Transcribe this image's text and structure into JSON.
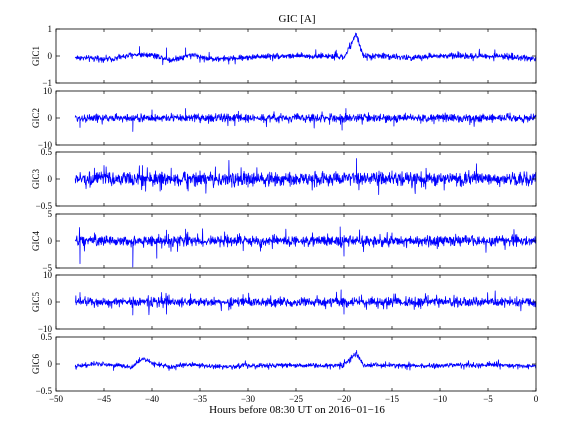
{
  "chart_data": {
    "type": "line",
    "title": "GIC [A]",
    "xlabel": "Hours before  08:30 UT on 2016−01−16",
    "xlim": [
      -50,
      0
    ],
    "x_ticks": [
      "−50",
      "−45",
      "−40",
      "−35",
      "−30",
      "−25",
      "−20",
      "−15",
      "−10",
      "−5",
      "0"
    ],
    "x_tick_values": [
      -50,
      -45,
      -40,
      -35,
      -30,
      -25,
      -20,
      -15,
      -10,
      -5,
      0
    ],
    "grid": false,
    "line_color": "#0000ff",
    "data_start_hours": -48,
    "panels": [
      {
        "ylabel": "GIC1",
        "ylim": [
          -1,
          1
        ],
        "y_ticks": [
          "1",
          "0",
          "−1"
        ],
        "y_tick_values": [
          1,
          0,
          -1
        ],
        "series": [
          {
            "x": [
              -48,
              -46,
              -44,
              -42,
              -40,
              -38,
              -36,
              -34,
              -32,
              -30,
              -28,
              -26,
              -24,
              -22,
              -20,
              -18.7,
              -18,
              -16,
              -14,
              -12,
              -10,
              -8,
              -6,
              -4,
              -2,
              0
            ],
            "y": [
              -0.05,
              -0.1,
              -0.1,
              0.05,
              0.05,
              -0.15,
              0.05,
              -0.1,
              -0.1,
              -0.05,
              0.0,
              0.0,
              0.0,
              0.0,
              -0.05,
              0.8,
              0.0,
              0.0,
              -0.05,
              -0.05,
              0.0,
              0.0,
              0.0,
              0.0,
              -0.05,
              -0.1
            ]
          }
        ],
        "noise": 0.05,
        "spikes": [
          {
            "x": -18.7,
            "y": 0.8
          },
          {
            "x": -41.3,
            "y": 0.35
          },
          {
            "x": -38.5,
            "y": 0.3
          },
          {
            "x": -36.5,
            "y": 0.3
          },
          {
            "x": -32.0,
            "y": -0.3
          }
        ]
      },
      {
        "ylabel": "GIC2",
        "ylim": [
          -10,
          10
        ],
        "y_ticks": [
          "10",
          "0",
          "−10"
        ],
        "y_tick_values": [
          10,
          0,
          -10
        ],
        "series": [
          {
            "x": [
              -48,
              0
            ],
            "y": [
              0,
              0
            ]
          }
        ],
        "noise": 0.7,
        "spikes": [
          {
            "x": -47.5,
            "y": -3.5
          },
          {
            "x": -42,
            "y": -5
          },
          {
            "x": -40,
            "y": 3
          },
          {
            "x": -36.5,
            "y": 3.5
          },
          {
            "x": -31,
            "y": 2.5
          },
          {
            "x": -20.2,
            "y": -4.5
          },
          {
            "x": -19.8,
            "y": 3.5
          },
          {
            "x": -14.8,
            "y": -3
          },
          {
            "x": -12,
            "y": -2
          },
          {
            "x": -8,
            "y": -1.5
          }
        ]
      },
      {
        "ylabel": "GIC3",
        "ylim": [
          -0.5,
          0.5
        ],
        "y_ticks": [
          "0.5",
          "0",
          "−0.5"
        ],
        "y_tick_values": [
          0.5,
          0,
          -0.5
        ],
        "series": [
          {
            "x": [
              -48,
              0
            ],
            "y": [
              0,
              0
            ]
          }
        ],
        "noise": 0.06,
        "spikes": [
          {
            "x": -46,
            "y": 0.2
          },
          {
            "x": -45,
            "y": 0.25
          },
          {
            "x": -41,
            "y": 0.25
          },
          {
            "x": -39,
            "y": -0.2
          },
          {
            "x": -38,
            "y": 0.2
          },
          {
            "x": -35,
            "y": 0.15
          },
          {
            "x": -30,
            "y": -0.15
          },
          {
            "x": -18.7,
            "y": 0.38
          },
          {
            "x": -15,
            "y": 0.15
          },
          {
            "x": -1,
            "y": -0.12
          }
        ]
      },
      {
        "ylabel": "GIC4",
        "ylim": [
          -5,
          5
        ],
        "y_ticks": [
          "5",
          "0",
          "−5"
        ],
        "y_tick_values": [
          5,
          0,
          -5
        ],
        "series": [
          {
            "x": [
              -48,
              0
            ],
            "y": [
              0,
              0
            ]
          }
        ],
        "noise": 0.45,
        "spikes": [
          {
            "x": -47.5,
            "y": -4.2
          },
          {
            "x": -46,
            "y": 1.5
          },
          {
            "x": -42,
            "y": -4.8
          },
          {
            "x": -39.5,
            "y": -3.2
          },
          {
            "x": -38.5,
            "y": 2.0
          },
          {
            "x": -36.5,
            "y": 2.2
          },
          {
            "x": -30.5,
            "y": -1.8
          },
          {
            "x": -20.4,
            "y": 2.6
          },
          {
            "x": -20.0,
            "y": -2.8
          },
          {
            "x": -15,
            "y": 1.5
          },
          {
            "x": -2,
            "y": 1.2
          }
        ]
      },
      {
        "ylabel": "GIC5",
        "ylim": [
          -10,
          10
        ],
        "y_ticks": [
          "10",
          "0",
          "−10"
        ],
        "y_tick_values": [
          10,
          0,
          -10
        ],
        "series": [
          {
            "x": [
              -48,
              0
            ],
            "y": [
              0,
              0
            ]
          }
        ],
        "noise": 0.8,
        "spikes": [
          {
            "x": -47.5,
            "y": 3.5
          },
          {
            "x": -42,
            "y": -4.8
          },
          {
            "x": -39,
            "y": 3.5
          },
          {
            "x": -38.5,
            "y": -4.5
          },
          {
            "x": -36,
            "y": 3
          },
          {
            "x": -32,
            "y": -3
          },
          {
            "x": -20.3,
            "y": 4.5
          },
          {
            "x": -20.0,
            "y": -4.5
          },
          {
            "x": -14.8,
            "y": 3
          },
          {
            "x": -12,
            "y": -2.5
          },
          {
            "x": -2,
            "y": 2
          }
        ]
      },
      {
        "ylabel": "GIC6",
        "ylim": [
          -0.5,
          0.5
        ],
        "y_ticks": [
          "0.5",
          "0",
          "−0.5"
        ],
        "y_tick_values": [
          0.5,
          0,
          -0.5
        ],
        "series": [
          {
            "x": [
              -48,
              -46,
              -44,
              -42,
              -41,
              -40,
              -38,
              -36,
              -34,
              -32,
              -30,
              -28,
              -26,
              -24,
              -22,
              -20,
              -18.7,
              -18,
              -16,
              -14,
              -12,
              -10,
              -8,
              -6,
              -4,
              -2,
              0
            ],
            "y": [
              -0.05,
              0.0,
              -0.02,
              -0.05,
              0.1,
              0.02,
              -0.05,
              0.0,
              -0.05,
              -0.05,
              -0.03,
              -0.03,
              -0.02,
              -0.03,
              -0.03,
              -0.02,
              0.2,
              -0.02,
              -0.02,
              -0.03,
              -0.03,
              -0.03,
              -0.02,
              -0.02,
              -0.02,
              -0.03,
              -0.04
            ]
          }
        ],
        "noise": 0.02,
        "spikes": [
          {
            "x": -18.7,
            "y": 0.2
          },
          {
            "x": -41.3,
            "y": 0.12
          },
          {
            "x": -44,
            "y": -0.12
          },
          {
            "x": -38,
            "y": -0.08
          }
        ]
      }
    ]
  }
}
